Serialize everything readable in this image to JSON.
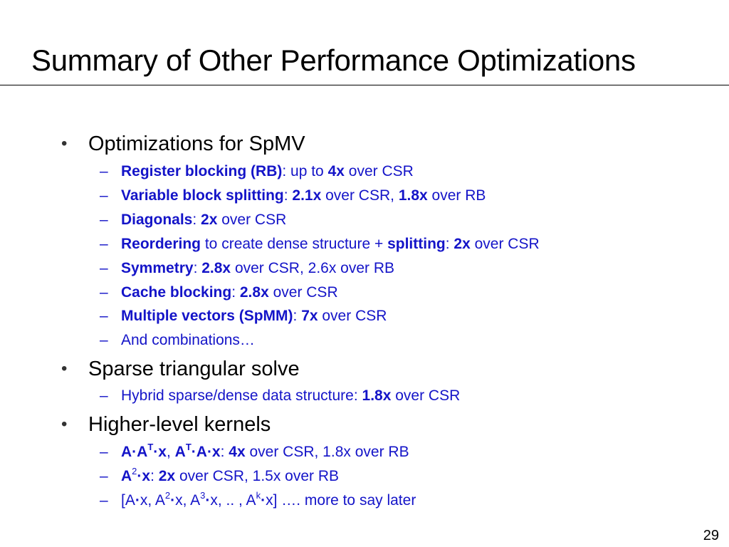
{
  "slide": {
    "title": "Summary of Other Performance Optimizations",
    "page_number": "29",
    "bullet_glyph": "•",
    "dash_glyph": "–"
  },
  "spmv": {
    "heading": "Optimizations for SpMV",
    "items": [
      {
        "b1": "Register blocking (RB)",
        "t1": ": up to ",
        "b2": "4x",
        "t2": " over CSR"
      },
      {
        "b1": "Variable block splitting",
        "t1": ": ",
        "b2": "2.1x",
        "t2": " over CSR, ",
        "b3": "1.8x",
        "t3": " over RB"
      },
      {
        "b1": "Diagonals",
        "t1": ": ",
        "b2": "2x",
        "t2": " over CSR"
      },
      {
        "b1": "Reordering",
        "t1": " to create dense structure + ",
        "b2": "splitting",
        "t2": ": ",
        "b3": "2x",
        "t3": " over CSR"
      },
      {
        "b1": "Symmetry",
        "t1": ": ",
        "b2": "2.8x",
        "t2": " over CSR, 2.6x over RB"
      },
      {
        "b1": "Cache blocking",
        "t1": ": ",
        "b2": "2.8x",
        "t2": " over CSR"
      },
      {
        "b1": "Multiple vectors (SpMM)",
        "t1": ": ",
        "b2": "7x",
        "t2": " over CSR"
      },
      {
        "t1": "And combinations…"
      }
    ]
  },
  "triangular": {
    "heading": "Sparse triangular solve",
    "items": [
      {
        "t1": "Hybrid sparse/dense data structure: ",
        "b1": "1.8x",
        "t2": " over CSR"
      }
    ]
  },
  "higher": {
    "heading": "Higher-level kernels",
    "item1": {
      "a": "A",
      "dot1": "·",
      "a2": "A",
      "sup1": "T",
      "dot2": "·x",
      "comma": ", ",
      "a3": "A",
      "sup2": "T",
      "dot3": "·A·x",
      "t1": ": ",
      "b1": "4x",
      "t2": " over CSR, 1.8x over RB"
    },
    "item2": {
      "a": "A",
      "sup1": "2",
      "dot": "·x",
      "t1": ": ",
      "b1": "2x",
      "t2": " over CSR, 1.5x over RB"
    },
    "item3": {
      "t1": "[A",
      "dot1": "·",
      "t2": "x, A",
      "sup1": "2",
      "dot2": "·",
      "t3": "x, A",
      "sup2": "3",
      "dot3": "·",
      "t4": "x, .. , A",
      "sup3": "k",
      "dot4": "·",
      "t5": "x]  ….   more to say later"
    }
  }
}
